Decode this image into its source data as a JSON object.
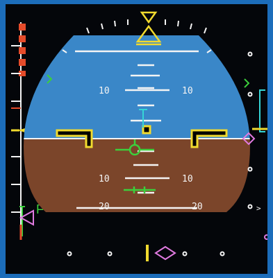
{
  "colors": {
    "frame": "#1c6dba",
    "background": "#04060a",
    "sky": "#3a87c8",
    "ground": "#7b452a",
    "white": "#f4f4f4",
    "yellow": "#f1da2e",
    "green": "#3ccf3c",
    "cyan": "#36d6d6",
    "magenta": "#e07ae0",
    "red": "#e54b2a"
  },
  "pitch_scale": {
    "labels_up": [
      "10",
      "10"
    ],
    "labels_down": [
      "10",
      "10"
    ],
    "labels_down_20": [
      "20",
      "20"
    ]
  },
  "speed_tape": {
    "flap_marker": "F"
  },
  "icons": [
    "sky-pointer-icon",
    "aircraft-symbol-icon",
    "flight-path-vector-icon",
    "flight-director-icon",
    "speed-trend-icon",
    "ils-deviation-diamond-icon",
    "localizer-diamond-icon"
  ]
}
